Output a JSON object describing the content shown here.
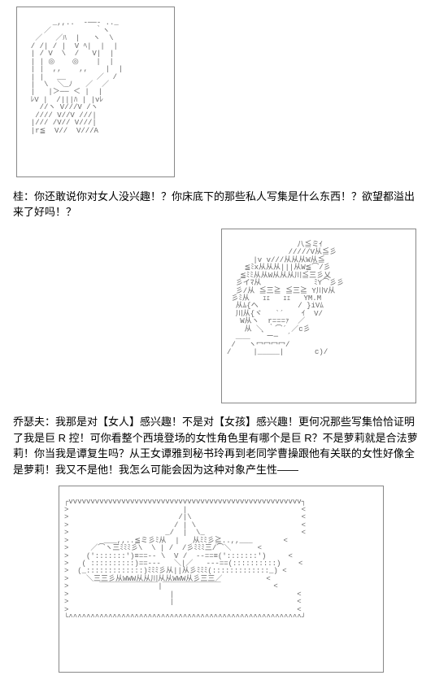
{
  "dialogue1": {
    "speaker": "桂：",
    "text": "你还敢说你对女人没兴趣！？你床底下的那些私人写集是什么东西！？欲望都溢出来了好吗！？"
  },
  "dialogue2": {
    "speaker": "乔瑟夫：",
    "text": "我那是对【女人】感兴趣！不是对【女孩】感兴趣！更何况那些写集恰恰证明了我是巨 R 控！可你看整个西境登场的女性角色里有哪个是巨 R？不是萝莉就是合法萝莉！你当我是谭复生吗？从王女谭雅到秘书玲再到老同学曹操跟他有关联的女性好像全是萝莉！我又不是他！我怎么可能会因为这种对象产生性——"
  },
  "ascii": {
    "art1_desc": "face-portrait-ascii",
    "art2_desc": "character-bust-ascii",
    "art3_desc": "scene-ascii"
  }
}
